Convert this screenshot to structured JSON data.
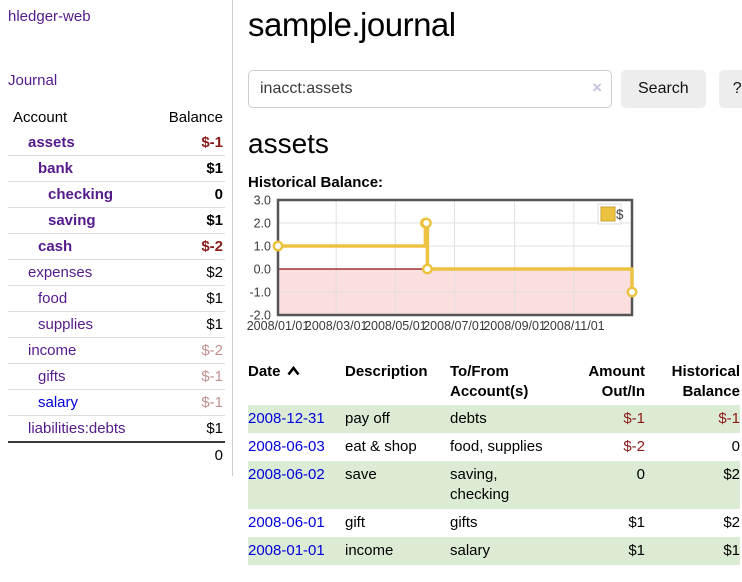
{
  "brand": "hledger-web",
  "nav": {
    "journal": "Journal"
  },
  "sidebar": {
    "headers": {
      "account": "Account",
      "balance": "Balance"
    },
    "accounts": [
      {
        "name": "assets",
        "balance": "$-1",
        "level": 1,
        "bold": true,
        "balance_style": "neg"
      },
      {
        "name": "bank",
        "balance": "$1",
        "level": 2,
        "bold": true,
        "balance_style": "pos"
      },
      {
        "name": "checking",
        "balance": "0",
        "level": 3,
        "bold": true,
        "balance_style": "pos"
      },
      {
        "name": "saving",
        "balance": "$1",
        "level": 3,
        "bold": true,
        "balance_style": "pos"
      },
      {
        "name": "cash",
        "balance": "$-2",
        "level": 2,
        "bold": true,
        "balance_style": "neg"
      },
      {
        "name": "expenses",
        "balance": "$2",
        "level": 1,
        "bold": false,
        "balance_style": "pos"
      },
      {
        "name": "food",
        "balance": "$1",
        "level": 2,
        "bold": false,
        "balance_style": "pos"
      },
      {
        "name": "supplies",
        "balance": "$1",
        "level": 2,
        "bold": false,
        "balance_style": "pos"
      },
      {
        "name": "income",
        "balance": "$-2",
        "level": 1,
        "bold": false,
        "balance_style": "dim-neg"
      },
      {
        "name": "gifts",
        "balance": "$-1",
        "level": 2,
        "bold": false,
        "balance_style": "dim-neg"
      },
      {
        "name": "salary",
        "balance": "$-1",
        "level": 2,
        "bold": false,
        "balance_style": "dim-neg",
        "link_style": "unvisited"
      },
      {
        "name": "liabilities:debts",
        "balance": "$1",
        "level": 1,
        "bold": false,
        "balance_style": "pos"
      }
    ],
    "total": "0"
  },
  "main": {
    "title": "sample.journal",
    "search": {
      "value": "inacct:assets",
      "clear": "×",
      "submit": "Search",
      "help": "?"
    },
    "account_title": "assets",
    "chart_title": "Historical Balance:"
  },
  "chart_data": {
    "type": "line",
    "step": true,
    "title": "Historical Balance:",
    "x_start": "2008-01-01",
    "x_end": "2008-12-31",
    "x_tick_labels": [
      "2008/01/01",
      "2008/03/01",
      "2008/05/01",
      "2008/07/01",
      "2008/09/01",
      "2008/11/01"
    ],
    "y_ticks": [
      "3.0",
      "2.0",
      "1.0",
      "0.0",
      "-1.0",
      "-2.0"
    ],
    "ylim": [
      -2,
      3
    ],
    "grid": true,
    "legend": {
      "label": "$",
      "position": "top-right"
    },
    "series": [
      {
        "name": "$",
        "color": "#edc240",
        "points": [
          {
            "x": "2008-01-01",
            "y": 1
          },
          {
            "x": "2008-06-01",
            "y": 2
          },
          {
            "x": "2008-06-02",
            "y": 2
          },
          {
            "x": "2008-06-03",
            "y": 0
          },
          {
            "x": "2008-12-31",
            "y": -1
          }
        ]
      }
    ],
    "negative_region_fill": "#fbdede",
    "zero_line_color": "#8b1010",
    "plot_border_color": "#545454",
    "gridline_color": "#e0e0e0"
  },
  "register": {
    "headers": [
      "Date",
      "Description",
      "To/From Account(s)",
      "Amount Out/In",
      "Historical Balance"
    ],
    "sort_icon": "chevron-up-icon",
    "rows": [
      {
        "date": "2008-12-31",
        "description": "pay off",
        "accounts": "debts",
        "amount": "$-1",
        "balance": "$-1",
        "amount_neg": true,
        "balance_neg": true
      },
      {
        "date": "2008-06-03",
        "description": "eat & shop",
        "accounts": "food, supplies",
        "amount": "$-2",
        "balance": "0",
        "amount_neg": true,
        "balance_neg": false
      },
      {
        "date": "2008-06-02",
        "description": "save",
        "accounts": "saving, checking",
        "amount": "0",
        "balance": "$2",
        "amount_neg": false,
        "balance_neg": false
      },
      {
        "date": "2008-06-01",
        "description": "gift",
        "accounts": "gifts",
        "amount": "$1",
        "balance": "$2",
        "amount_neg": false,
        "balance_neg": false
      },
      {
        "date": "2008-01-01",
        "description": "income",
        "accounts": "salary",
        "amount": "$1",
        "balance": "$1",
        "amount_neg": false,
        "balance_neg": false
      }
    ]
  }
}
